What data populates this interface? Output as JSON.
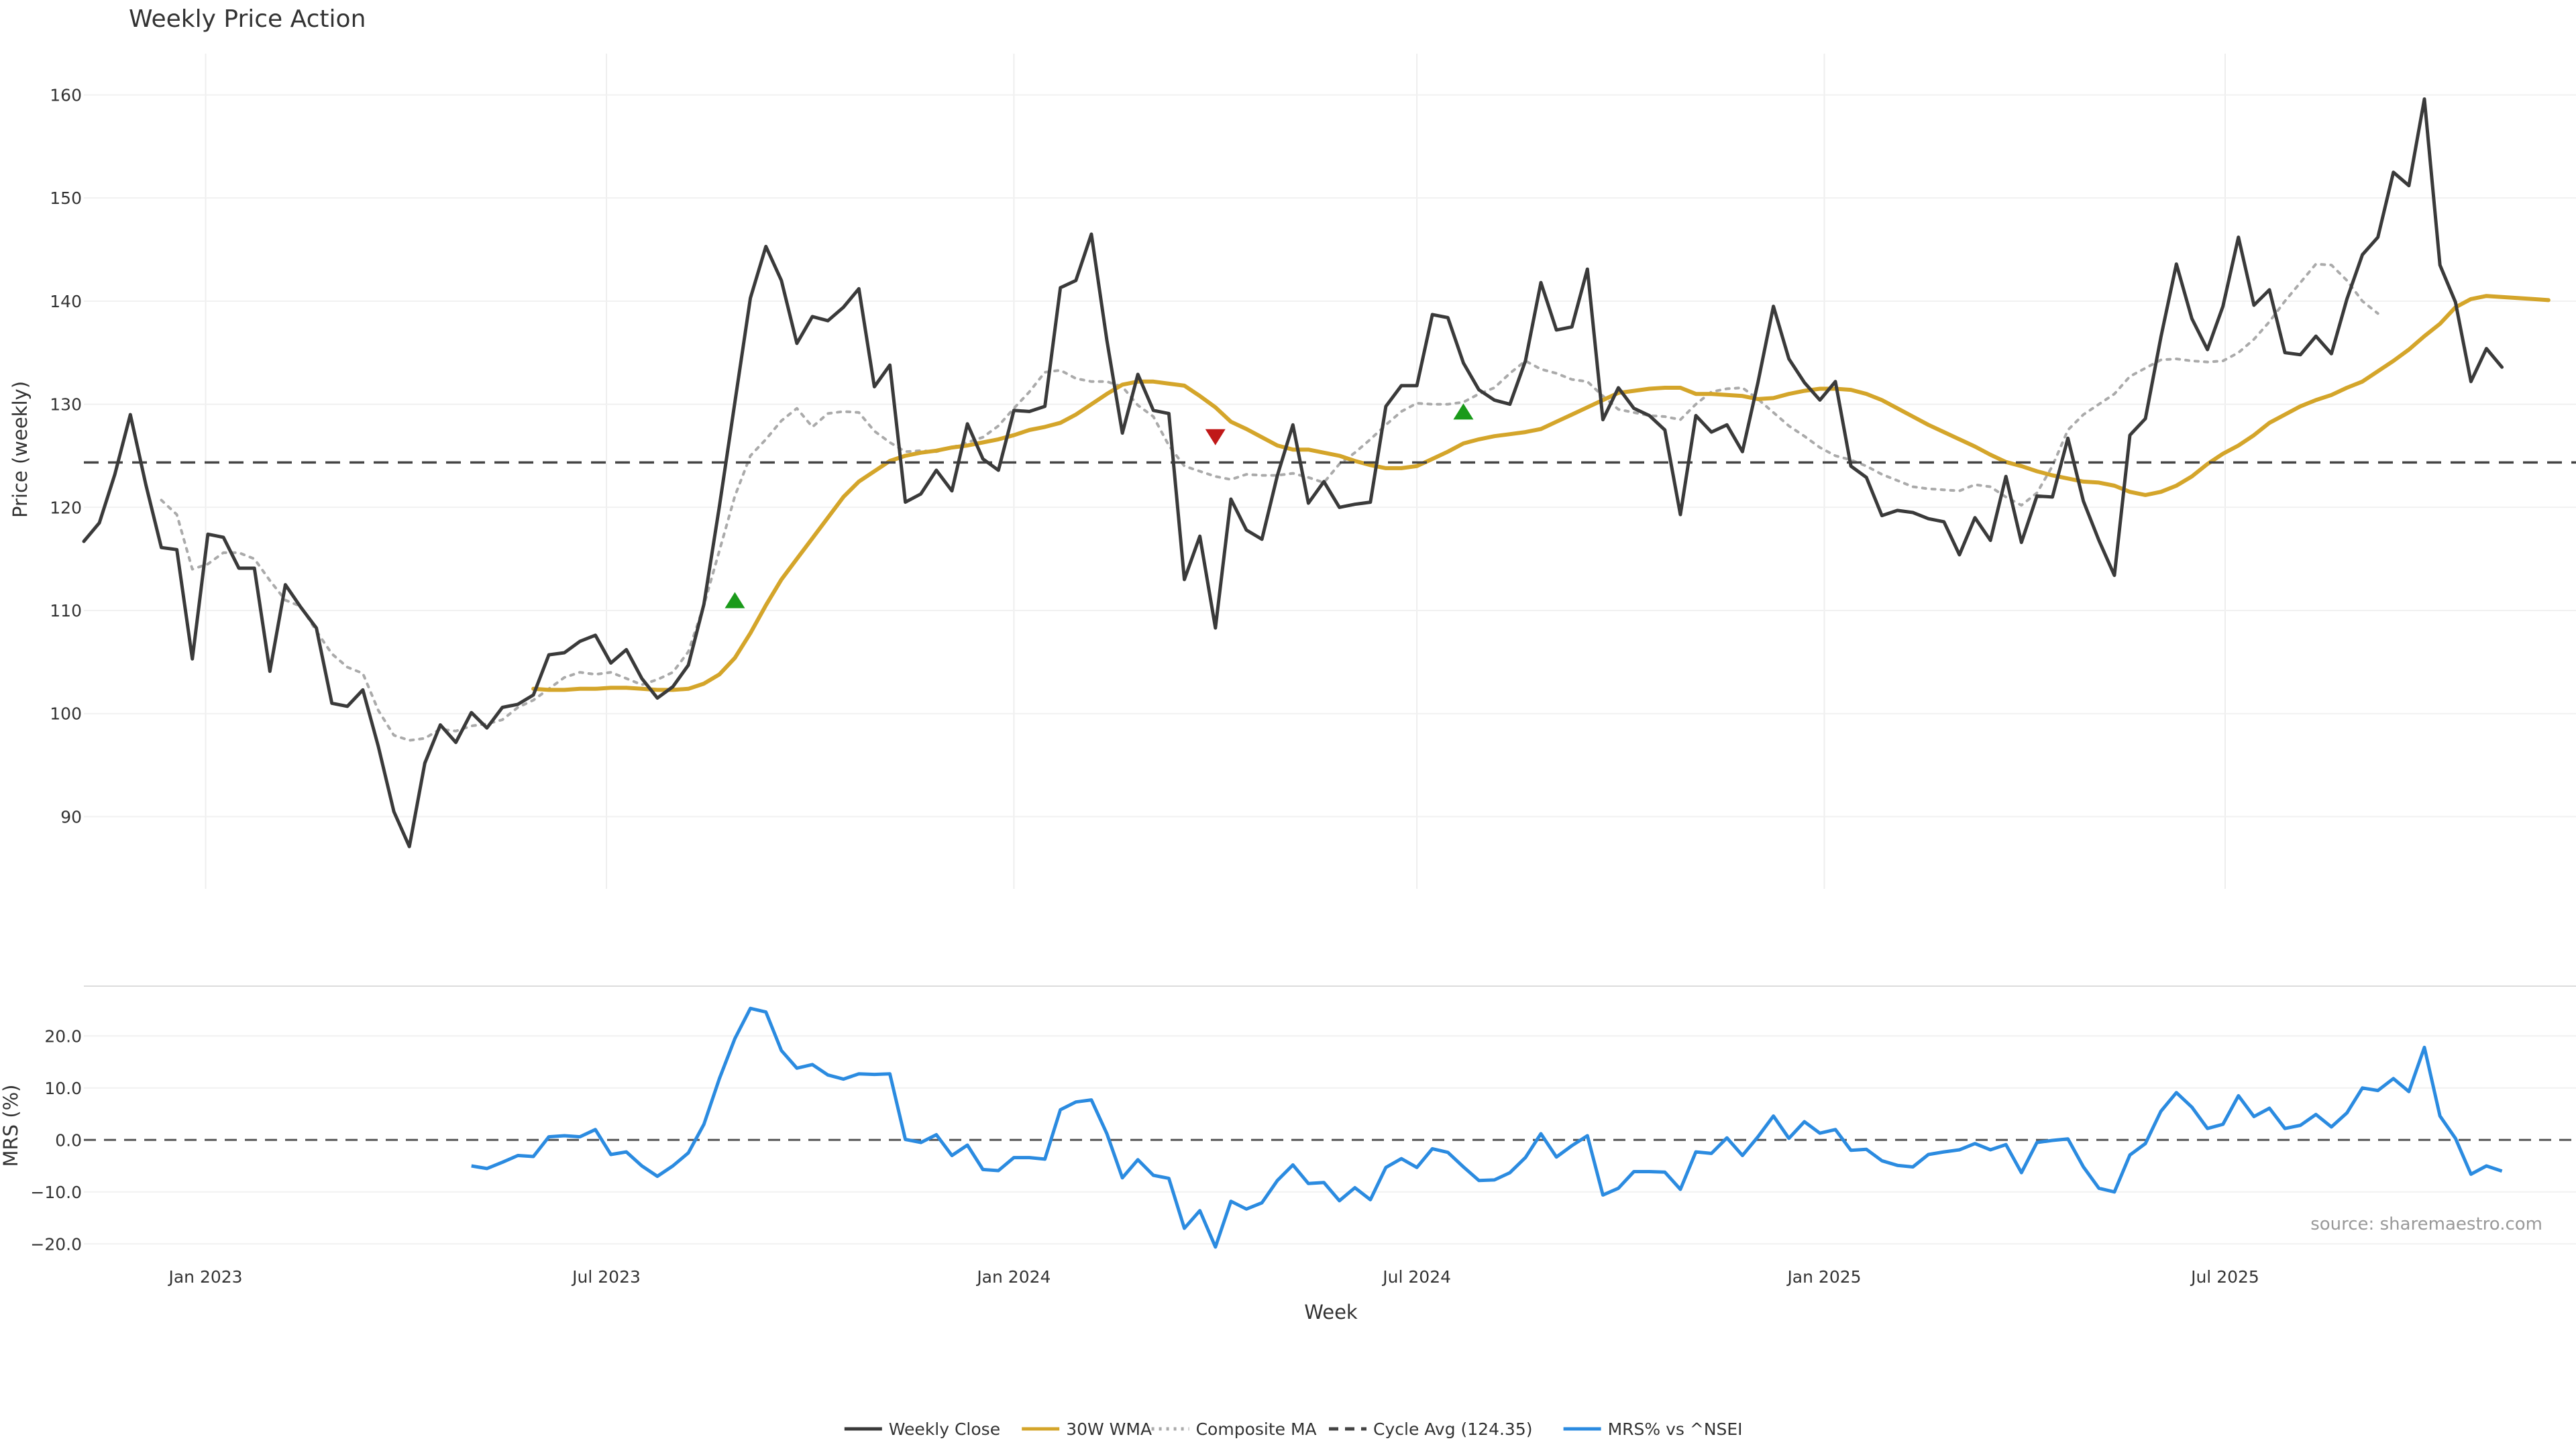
{
  "chart_data": [
    {
      "type": "line",
      "title": "Weekly Price Action",
      "xlabel": "",
      "ylabel": "Price (weekly)",
      "ylim": [
        83,
        164
      ],
      "yticks": [
        90,
        100,
        110,
        120,
        130,
        140,
        150,
        160
      ],
      "x_start": "2022-11-07",
      "x_step_days": 7,
      "grid": true,
      "series": [
        {
          "name": "Weekly Close",
          "color": "#3a3a3a",
          "style": "solid",
          "values": [
            116.7,
            118.5,
            123.2,
            129.0,
            122.2,
            116.1,
            115.9,
            105.3,
            117.4,
            117.1,
            114.1,
            114.1,
            104.1,
            112.5,
            110.3,
            108.3,
            101.0,
            100.7,
            102.3,
            96.8,
            90.5,
            87.1,
            95.2,
            98.9,
            97.2,
            100.1,
            98.6,
            100.6,
            100.9,
            101.8,
            105.7,
            105.9,
            107.0,
            107.6,
            104.9,
            106.2,
            103.4,
            101.5,
            102.6,
            104.7,
            110.6,
            120.1,
            130.2,
            140.3,
            145.3,
            142.0,
            135.9,
            138.5,
            138.1,
            139.4,
            141.2,
            131.7,
            133.8,
            120.5,
            121.3,
            123.6,
            121.6,
            128.1,
            124.7,
            123.6,
            129.4,
            129.3,
            129.8,
            141.3,
            142.0,
            146.5,
            136.2,
            127.2,
            132.9,
            129.4,
            129.1,
            113.0,
            117.2,
            108.3,
            120.8,
            117.8,
            116.9,
            123.1,
            128.0,
            120.4,
            122.5,
            120.0,
            120.3,
            120.5,
            129.8,
            131.8,
            131.8,
            138.7,
            138.4,
            134.0,
            131.4,
            130.4,
            130.0,
            134.2,
            141.8,
            137.2,
            137.5,
            143.1,
            128.5,
            131.6,
            129.6,
            128.9,
            127.5,
            119.3,
            128.9,
            127.3,
            128.0,
            125.4,
            132.1,
            139.5,
            134.4,
            132.1,
            130.4,
            132.2,
            124.0,
            122.9,
            119.2,
            119.7,
            119.5,
            118.9,
            118.6,
            115.4,
            119.0,
            116.8,
            123.0,
            116.6,
            121.1,
            121.0,
            126.7,
            120.6,
            116.8,
            113.4,
            127.0,
            128.6,
            136.5,
            143.6,
            138.3,
            135.3,
            139.5,
            146.2,
            139.6,
            141.1,
            135.0,
            134.8,
            136.6,
            134.9,
            140.2,
            144.5,
            146.2,
            152.5,
            151.2,
            159.6,
            143.5,
            139.9,
            132.2,
            135.4,
            133.6
          ]
        },
        {
          "name": "30W WMA",
          "color": "#d4a52a",
          "style": "solid",
          "start_index": 29,
          "values": [
            102.4,
            102.3,
            102.3,
            102.4,
            102.4,
            102.5,
            102.5,
            102.4,
            102.3,
            102.3,
            102.4,
            102.9,
            103.8,
            105.4,
            107.8,
            110.5,
            113.0,
            115.0,
            117.0,
            119.0,
            121.0,
            122.5,
            123.5,
            124.5,
            125.0,
            125.3,
            125.5,
            125.8,
            126.0,
            126.3,
            126.6,
            127.0,
            127.5,
            127.8,
            128.2,
            129.0,
            130.0,
            131.0,
            131.9,
            132.2,
            132.2,
            132.0,
            131.8,
            130.8,
            129.7,
            128.3,
            127.6,
            126.8,
            126.0,
            125.6,
            125.6,
            125.3,
            125.0,
            124.5,
            124.1,
            123.8,
            123.8,
            124.0,
            124.7,
            125.4,
            126.2,
            126.6,
            126.9,
            127.1,
            127.3,
            127.6,
            128.3,
            129.0,
            129.7,
            130.4,
            131.1,
            131.3,
            131.5,
            131.6,
            131.6,
            131.0,
            131.0,
            130.9,
            130.8,
            130.5,
            130.6,
            131.0,
            131.3,
            131.5,
            131.5,
            131.4,
            131.0,
            130.4,
            129.6,
            128.8,
            128.0,
            127.3,
            126.6,
            125.9,
            125.1,
            124.4,
            124.0,
            123.5,
            123.1,
            122.8,
            122.5,
            122.4,
            122.1,
            121.5,
            121.2,
            121.5,
            122.1,
            123.0,
            124.2,
            125.2,
            126.0,
            127.0,
            128.2,
            129.0,
            129.8,
            130.4,
            130.9,
            131.6,
            132.2,
            133.2,
            134.2,
            135.3,
            136.6,
            137.8,
            139.4,
            140.2,
            140.5,
            140.4,
            140.3,
            140.2,
            140.1
          ]
        },
        {
          "name": "Composite MA",
          "color": "#aaaaaa",
          "style": "dotted",
          "start_index": 5,
          "values": [
            120.7,
            119.3,
            114.0,
            114.5,
            115.6,
            115.6,
            115.0,
            112.9,
            111.0,
            110.4,
            108.0,
            105.8,
            104.5,
            103.9,
            100.3,
            97.9,
            97.4,
            97.6,
            98.5,
            98.3,
            98.8,
            99.0,
            99.4,
            100.6,
            101.3,
            102.4,
            103.5,
            104.0,
            103.8,
            104.0,
            103.4,
            102.8,
            103.3,
            104.0,
            106.0,
            110.5,
            115.8,
            121.1,
            125.0,
            126.6,
            128.4,
            129.6,
            127.8,
            129.1,
            129.3,
            129.2,
            127.4,
            126.3,
            125.4,
            125.5,
            125.4,
            125.8,
            126.3,
            126.8,
            127.9,
            129.6,
            131.2,
            133.1,
            133.3,
            132.5,
            132.2,
            132.2,
            131.7,
            129.9,
            128.8,
            126.0,
            124.0,
            123.5,
            123.0,
            122.7,
            123.2,
            123.1,
            123.1,
            123.3,
            122.9,
            122.4,
            124.2,
            125.3,
            126.6,
            128.0,
            129.3,
            130.1,
            130.0,
            130.0,
            130.2,
            131.0,
            131.6,
            133.0,
            134.2,
            133.4,
            133.0,
            132.4,
            132.2,
            130.8,
            129.5,
            129.2,
            128.9,
            128.8,
            128.5,
            130.0,
            131.2,
            131.5,
            131.6,
            130.5,
            129.2,
            127.9,
            126.9,
            125.8,
            125.0,
            124.6,
            124.0,
            123.2,
            122.6,
            122.0,
            121.8,
            121.7,
            121.6,
            122.2,
            122.0,
            121.0,
            120.2,
            121.4,
            124.0,
            127.5,
            129.0,
            130.0,
            131.0,
            132.7,
            133.5,
            134.3,
            134.4,
            134.2,
            134.1,
            134.2,
            135.0,
            136.3,
            138.0,
            140.0,
            141.8,
            143.6,
            143.5,
            142.0,
            140.0,
            138.8
          ]
        },
        {
          "name": "Cycle Avg (124.35)",
          "color": "#444444",
          "style": "dashed",
          "value": 124.35
        }
      ],
      "signals": [
        {
          "type": "buy",
          "index": 42,
          "value": 111.0,
          "color": "#1a9a1a"
        },
        {
          "type": "sell",
          "index": 73,
          "value": 126.8,
          "color": "#c01818"
        },
        {
          "type": "buy",
          "index": 89,
          "value": 129.3,
          "color": "#1a9a1a"
        }
      ]
    },
    {
      "type": "line",
      "xlabel": "Week",
      "ylabel": "MRS (%)",
      "ylim": [
        -21,
        27
      ],
      "yticks": [
        20.0,
        10.0,
        0.0,
        -10.0,
        -20.0
      ],
      "ytick_labels": [
        "20.0",
        "10.0",
        "0.0",
        "−10.0",
        "−20.0"
      ],
      "xticks": [
        {
          "label": "Jan 2023",
          "date": "2023-01-01"
        },
        {
          "label": "Jul 2023",
          "date": "2023-07-01"
        },
        {
          "label": "Jan 2024",
          "date": "2024-01-01"
        },
        {
          "label": "Jul 2024",
          "date": "2024-07-01"
        },
        {
          "label": "Jan 2025",
          "date": "2025-01-01"
        },
        {
          "label": "Jul 2025",
          "date": "2025-07-01"
        }
      ],
      "zero_line": 0.0,
      "series": [
        {
          "name": "MRS% vs ^NSEI",
          "color": "#2b8be0",
          "style": "solid",
          "start_index": 25,
          "values": [
            -5.0,
            -5.5,
            -4.3,
            -3.0,
            -3.2,
            0.6,
            0.8,
            0.6,
            2.0,
            -2.8,
            -2.3,
            -5.0,
            -7.0,
            -5.0,
            -2.5,
            3.0,
            11.8,
            19.5,
            25.3,
            24.6,
            17.2,
            13.8,
            14.5,
            12.5,
            11.7,
            12.7,
            12.6,
            12.7,
            0.1,
            -0.5,
            1.0,
            -3.0,
            -1.0,
            -5.7,
            -5.9,
            -3.4,
            -3.4,
            -3.7,
            5.8,
            7.3,
            7.7,
            1.2,
            -7.3,
            -3.8,
            -6.8,
            -7.4,
            -17.0,
            -13.6,
            -20.6,
            -11.8,
            -13.3,
            -12.1,
            -7.8,
            -4.8,
            -8.4,
            -8.2,
            -11.7,
            -9.2,
            -11.5,
            -5.3,
            -3.6,
            -5.3,
            -1.7,
            -2.4,
            -5.2,
            -7.8,
            -7.7,
            -6.3,
            -3.4,
            1.2,
            -3.3,
            -1.1,
            0.8,
            -10.6,
            -9.3,
            -6.1,
            -6.1,
            -6.2,
            -9.5,
            -2.3,
            -2.6,
            0.4,
            -3.0,
            0.6,
            4.6,
            0.3,
            3.5,
            1.3,
            2.0,
            -2.0,
            -1.8,
            -4.0,
            -4.9,
            -5.2,
            -2.8,
            -2.3,
            -1.9,
            -0.7,
            -1.9,
            -0.9,
            -6.3,
            -0.5,
            -0.1,
            0.2,
            -5.2,
            -9.3,
            -10.0,
            -2.9,
            -0.7,
            5.5,
            9.1,
            6.3,
            2.2,
            3.0,
            8.5,
            4.5,
            6.1,
            2.2,
            2.8,
            4.9,
            2.5,
            5.2,
            10.0,
            9.5,
            11.8,
            9.3,
            17.8,
            4.6,
            0.3,
            -6.6,
            -5.0,
            -6.0
          ]
        }
      ]
    }
  ],
  "source_text": "source: sharemaestro.com",
  "legend": {
    "items": [
      {
        "label": "Weekly Close",
        "color": "#3a3a3a",
        "style": "solid"
      },
      {
        "label": "30W WMA",
        "color": "#d4a52a",
        "style": "solid"
      },
      {
        "label": "Composite MA",
        "color": "#aaaaaa",
        "style": "dotted"
      },
      {
        "label": "Cycle Avg (124.35)",
        "color": "#444444",
        "style": "dashed"
      },
      {
        "label": "MRS% vs ^NSEI",
        "color": "#2b8be0",
        "style": "solid"
      }
    ]
  }
}
